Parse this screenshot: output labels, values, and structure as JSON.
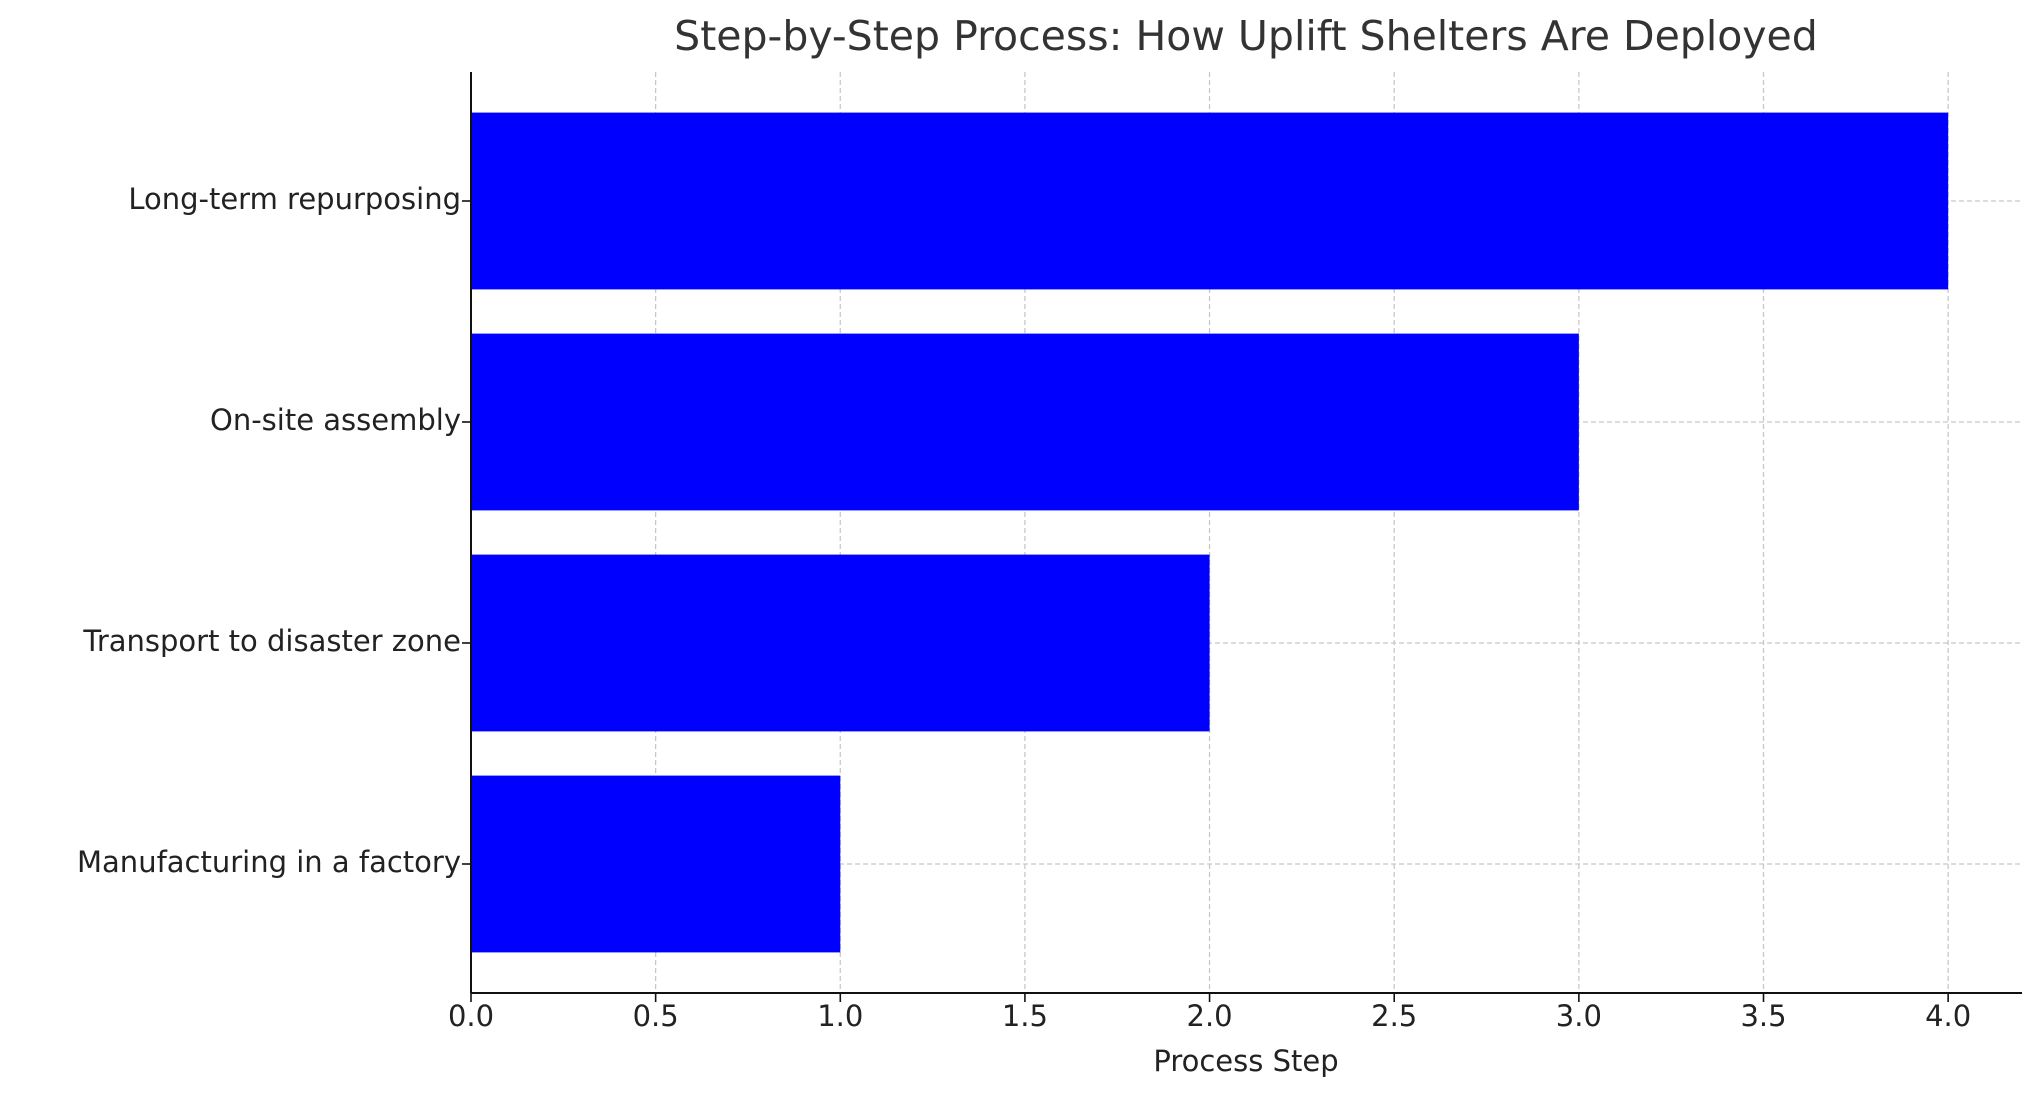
{
  "chart_data": {
    "type": "barh",
    "title": "Step-by-Step Process: How Uplift Shelters Are Deployed",
    "xlabel": "Process Step",
    "categories": [
      "Manufacturing in a factory",
      "Transport to disaster zone",
      "On-site assembly",
      "Long-term repurposing"
    ],
    "values": [
      1,
      2,
      3,
      4
    ],
    "color": "#0000ff",
    "xlim": [
      0,
      4.2
    ],
    "xticks": [
      {
        "value": 0,
        "label": "0.0"
      },
      0.5,
      {
        "value": 1,
        "label": "1.0"
      },
      1.5,
      {
        "value": 2,
        "label": "2.0"
      },
      2.5,
      {
        "value": 3,
        "label": "3.0"
      },
      3.5,
      {
        "value": 4,
        "label": "4.0"
      }
    ],
    "grid": true
  }
}
